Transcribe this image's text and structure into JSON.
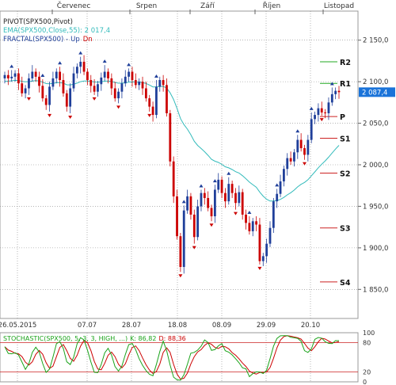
{
  "months": [
    "Červenec",
    "Srpen",
    "Září",
    "Říjen",
    "Listopad"
  ],
  "legend": {
    "pivot": "PIVOT(SPX500,Pivot)",
    "ema": "EMA(SPX500,Close,55): 2 017,4",
    "fractal_prefix": "FRACTAL(SPX500) -",
    "fractal_up": "Up",
    "fractal_dn": "Dn"
  },
  "stoch_legend": {
    "prefix": "STOCHASTIC(SPX500, 5, 3, 3, HIGH, ...)",
    "k": "K: 86,82",
    "d": "D: 88,36"
  },
  "colors": {
    "up": "#1f3f9a",
    "down": "#cc0000",
    "ema": "#33bbbb",
    "grid": "#888888",
    "pivot_green": "#22aa22",
    "pivot_red": "#cc2222",
    "stoch_k": "#1aa31a",
    "stoch_d": "#cc0000",
    "last_price_box": "#1a73d9"
  },
  "chart_data": {
    "type": "candlestick",
    "instrument": "SPX500",
    "x_tick_labels": [
      "26.05.2015",
      "07.07",
      "28.07",
      "18.08",
      "08.09",
      "29.09",
      "20.10"
    ],
    "y_tick_labels": [
      "2 150,0",
      "2 100,0",
      "2 050,0",
      "2 000,0",
      "1 950,0",
      "1 900,0",
      "1 850,0"
    ],
    "y_ticks": [
      2150,
      2100,
      2050,
      2000,
      1950,
      1900,
      1850
    ],
    "ylim": [
      1815,
      2185
    ],
    "last_price": 2087.4,
    "last_price_label": "2 087,4",
    "ema_last": 2017.4,
    "pivot_levels": [
      {
        "name": "R2",
        "value": 2124,
        "color": "green"
      },
      {
        "name": "R1",
        "value": 2098,
        "color": "green"
      },
      {
        "name": "P",
        "value": 2058,
        "color": "red"
      },
      {
        "name": "S1",
        "value": 2032,
        "color": "red"
      },
      {
        "name": "S2",
        "value": 1990,
        "color": "red"
      },
      {
        "name": "S3",
        "value": 1924,
        "color": "red"
      },
      {
        "name": "S4",
        "value": 1859,
        "color": "red"
      }
    ],
    "closes": [
      2108,
      2104,
      2106,
      2110,
      2098,
      2086,
      2092,
      2104,
      2112,
      2106,
      2095,
      2080,
      2072,
      2094,
      2104,
      2112,
      2102,
      2086,
      2070,
      2092,
      2110,
      2118,
      2124,
      2112,
      2102,
      2095,
      2088,
      2097,
      2105,
      2112,
      2104,
      2092,
      2080,
      2088,
      2098,
      2106,
      2112,
      2102,
      2096,
      2100,
      2092,
      2080,
      2070,
      2060,
      2094,
      2102,
      2096,
      2062,
      2004,
      1962,
      1914,
      1877,
      1945,
      1962,
      1940,
      1913,
      1950,
      1966,
      1960,
      1948,
      1938,
      1970,
      1982,
      1966,
      1956,
      1977,
      1966,
      1954,
      1967,
      1940,
      1930,
      1920,
      1932,
      1928,
      1884,
      1890,
      1905,
      1924,
      1956,
      1965,
      1980,
      1995,
      2008,
      2004,
      2015,
      2030,
      2020,
      2012,
      2030,
      2055,
      2060,
      2068,
      2063,
      2062,
      2075,
      2085,
      2089,
      2087.4
    ],
    "fractals_up": [
      2,
      11,
      16,
      22,
      29,
      36,
      44,
      52,
      57,
      61,
      65,
      71,
      79,
      85,
      89,
      95
    ],
    "fractals_down": [
      7,
      13,
      19,
      26,
      33,
      42,
      51,
      55,
      60,
      67,
      74,
      87,
      92
    ],
    "stochastic": {
      "period": [
        5,
        3,
        3
      ],
      "levels": [
        20,
        80
      ],
      "ylim": [
        0,
        100
      ],
      "y_tick_labels": [
        "100",
        "80",
        "20",
        "0"
      ],
      "k_last": 86.82,
      "d_last": 88.36
    }
  }
}
